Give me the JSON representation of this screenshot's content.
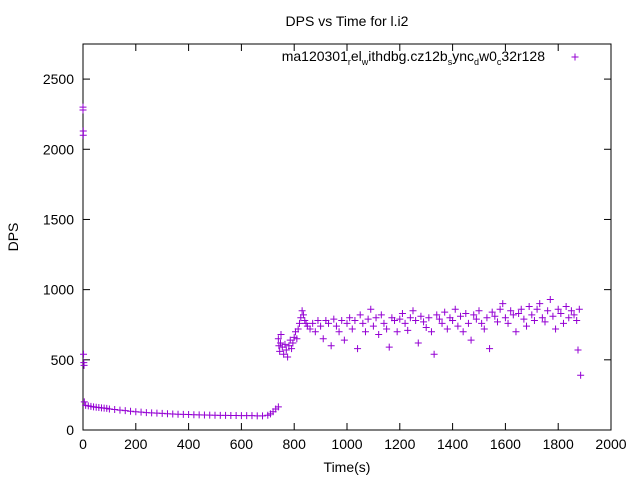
{
  "chart_data": {
    "type": "scatter",
    "title": "DPS vs Time for l.i2",
    "xlabel": "Time(s)",
    "ylabel": "DPS",
    "xlim": [
      0,
      2000
    ],
    "ylim": [
      0,
      2750
    ],
    "xticks": [
      0,
      200,
      400,
      600,
      800,
      1000,
      1200,
      1400,
      1600,
      1800,
      2000
    ],
    "yticks": [
      0,
      500,
      1000,
      1500,
      2000,
      2500
    ],
    "grid": false,
    "legend_placement": "top-right",
    "marker": "+",
    "color": "#9400d3",
    "series": [
      {
        "name": "ma120301_rel_withdbg.cz12b_sync_dw0_c32r128",
        "points": [
          [
            0,
            2300
          ],
          [
            0,
            2280
          ],
          [
            1,
            2130
          ],
          [
            1,
            2100
          ],
          [
            2,
            540
          ],
          [
            3,
            480
          ],
          [
            4,
            460
          ],
          [
            5,
            200
          ],
          [
            10,
            175
          ],
          [
            20,
            172
          ],
          [
            30,
            168
          ],
          [
            40,
            165
          ],
          [
            50,
            162
          ],
          [
            60,
            160
          ],
          [
            70,
            158
          ],
          [
            80,
            156
          ],
          [
            90,
            154
          ],
          [
            100,
            150
          ],
          [
            120,
            146
          ],
          [
            140,
            142
          ],
          [
            160,
            138
          ],
          [
            180,
            134
          ],
          [
            200,
            130
          ],
          [
            220,
            127
          ],
          [
            240,
            124
          ],
          [
            260,
            122
          ],
          [
            280,
            120
          ],
          [
            300,
            118
          ],
          [
            320,
            116
          ],
          [
            340,
            114
          ],
          [
            360,
            112
          ],
          [
            380,
            111
          ],
          [
            400,
            110
          ],
          [
            420,
            109
          ],
          [
            440,
            108
          ],
          [
            460,
            107
          ],
          [
            480,
            106
          ],
          [
            500,
            105
          ],
          [
            520,
            104
          ],
          [
            540,
            104
          ],
          [
            560,
            103
          ],
          [
            580,
            103
          ],
          [
            600,
            102
          ],
          [
            620,
            102
          ],
          [
            640,
            102
          ],
          [
            660,
            101
          ],
          [
            680,
            101
          ],
          [
            700,
            105
          ],
          [
            710,
            115
          ],
          [
            720,
            130
          ],
          [
            730,
            150
          ],
          [
            740,
            165
          ],
          [
            740,
            650
          ],
          [
            742,
            600
          ],
          [
            745,
            560
          ],
          [
            748,
            620
          ],
          [
            750,
            680
          ],
          [
            755,
            590
          ],
          [
            760,
            540
          ],
          [
            765,
            610
          ],
          [
            770,
            570
          ],
          [
            775,
            520
          ],
          [
            780,
            600
          ],
          [
            785,
            640
          ],
          [
            790,
            580
          ],
          [
            795,
            620
          ],
          [
            800,
            660
          ],
          [
            805,
            700
          ],
          [
            810,
            650
          ],
          [
            815,
            720
          ],
          [
            820,
            760
          ],
          [
            825,
            800
          ],
          [
            830,
            850
          ],
          [
            835,
            820
          ],
          [
            840,
            780
          ],
          [
            845,
            760
          ],
          [
            850,
            740
          ],
          [
            860,
            720
          ],
          [
            870,
            760
          ],
          [
            880,
            700
          ],
          [
            890,
            780
          ],
          [
            900,
            740
          ],
          [
            910,
            650
          ],
          [
            920,
            780
          ],
          [
            930,
            760
          ],
          [
            940,
            600
          ],
          [
            950,
            790
          ],
          [
            960,
            740
          ],
          [
            970,
            700
          ],
          [
            980,
            780
          ],
          [
            990,
            640
          ],
          [
            1000,
            760
          ],
          [
            1010,
            800
          ],
          [
            1020,
            720
          ],
          [
            1030,
            780
          ],
          [
            1040,
            580
          ],
          [
            1050,
            820
          ],
          [
            1060,
            760
          ],
          [
            1070,
            700
          ],
          [
            1080,
            790
          ],
          [
            1090,
            860
          ],
          [
            1100,
            740
          ],
          [
            1110,
            800
          ],
          [
            1120,
            680
          ],
          [
            1130,
            820
          ],
          [
            1140,
            760
          ],
          [
            1150,
            720
          ],
          [
            1160,
            590
          ],
          [
            1170,
            800
          ],
          [
            1180,
            780
          ],
          [
            1190,
            700
          ],
          [
            1200,
            790
          ],
          [
            1210,
            830
          ],
          [
            1220,
            760
          ],
          [
            1230,
            710
          ],
          [
            1240,
            800
          ],
          [
            1250,
            850
          ],
          [
            1260,
            780
          ],
          [
            1270,
            620
          ],
          [
            1280,
            810
          ],
          [
            1290,
            770
          ],
          [
            1300,
            730
          ],
          [
            1310,
            800
          ],
          [
            1320,
            700
          ],
          [
            1330,
            540
          ],
          [
            1340,
            820
          ],
          [
            1350,
            790
          ],
          [
            1360,
            760
          ],
          [
            1370,
            840
          ],
          [
            1380,
            720
          ],
          [
            1390,
            800
          ],
          [
            1400,
            780
          ],
          [
            1410,
            860
          ],
          [
            1420,
            740
          ],
          [
            1430,
            810
          ],
          [
            1440,
            700
          ],
          [
            1450,
            830
          ],
          [
            1460,
            760
          ],
          [
            1470,
            640
          ],
          [
            1480,
            820
          ],
          [
            1490,
            790
          ],
          [
            1500,
            850
          ],
          [
            1510,
            760
          ],
          [
            1520,
            720
          ],
          [
            1530,
            800
          ],
          [
            1540,
            580
          ],
          [
            1550,
            840
          ],
          [
            1560,
            810
          ],
          [
            1570,
            770
          ],
          [
            1580,
            860
          ],
          [
            1590,
            900
          ],
          [
            1600,
            800
          ],
          [
            1610,
            760
          ],
          [
            1620,
            850
          ],
          [
            1630,
            820
          ],
          [
            1640,
            700
          ],
          [
            1650,
            830
          ],
          [
            1660,
            860
          ],
          [
            1670,
            790
          ],
          [
            1680,
            740
          ],
          [
            1690,
            880
          ],
          [
            1700,
            820
          ],
          [
            1710,
            780
          ],
          [
            1720,
            860
          ],
          [
            1730,
            900
          ],
          [
            1740,
            800
          ],
          [
            1750,
            770
          ],
          [
            1760,
            850
          ],
          [
            1770,
            930
          ],
          [
            1780,
            810
          ],
          [
            1790,
            720
          ],
          [
            1800,
            860
          ],
          [
            1810,
            830
          ],
          [
            1820,
            760
          ],
          [
            1830,
            880
          ],
          [
            1840,
            800
          ],
          [
            1850,
            850
          ],
          [
            1860,
            820
          ],
          [
            1870,
            780
          ],
          [
            1875,
            570
          ],
          [
            1880,
            860
          ],
          [
            1885,
            390
          ]
        ]
      }
    ]
  }
}
